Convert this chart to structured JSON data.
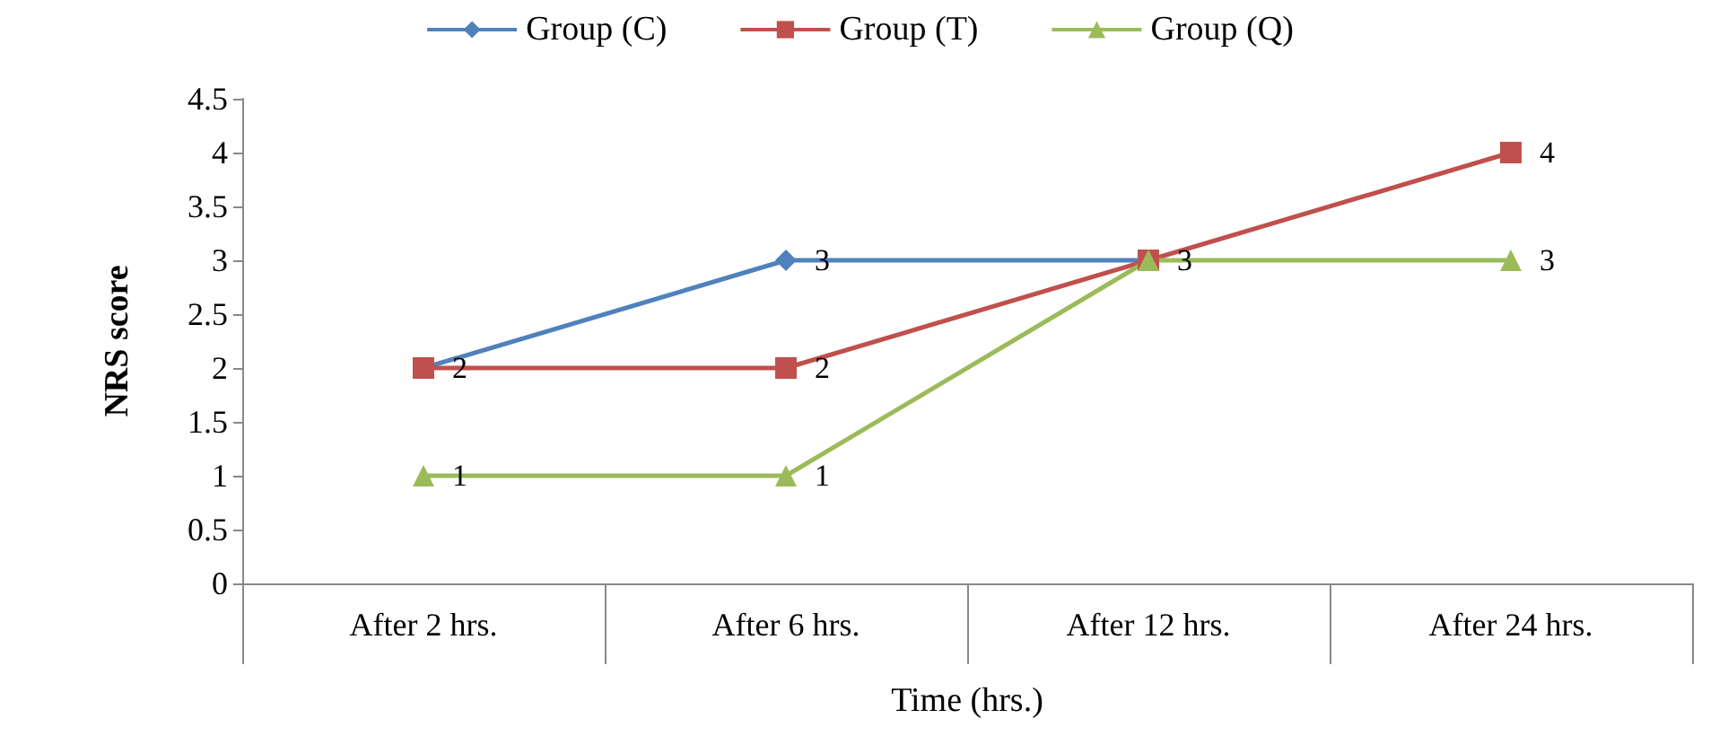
{
  "chart_data": {
    "type": "line",
    "xlabel": "Time (hrs.)",
    "ylabel": "NRS score",
    "categories": [
      "After 2 hrs.",
      "After 6 hrs.",
      "After 12 hrs.",
      "After 24 hrs."
    ],
    "series": [
      {
        "name": "Group (C)",
        "color": "#4f81bd",
        "marker": "diamond",
        "values": [
          2,
          3,
          3,
          null
        ],
        "value_labels": [
          null,
          "3",
          "3",
          null
        ]
      },
      {
        "name": "Group (T)",
        "color": "#c0504d",
        "marker": "square",
        "values": [
          2,
          2,
          3,
          4
        ],
        "value_labels": [
          "2",
          "2",
          null,
          "4"
        ]
      },
      {
        "name": "Group (Q)",
        "color": "#9bbb59",
        "marker": "triangle",
        "values": [
          1,
          1,
          3,
          3
        ],
        "value_labels": [
          "1",
          "1",
          null,
          "3"
        ]
      }
    ],
    "ylim": [
      0,
      4.5
    ],
    "yticks": [
      0,
      0.5,
      1,
      1.5,
      2,
      2.5,
      3,
      3.5,
      4,
      4.5
    ],
    "grid": false,
    "legend": "top"
  }
}
